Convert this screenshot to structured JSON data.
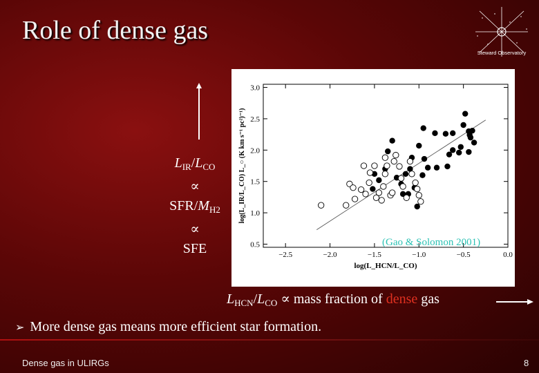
{
  "slide": {
    "title": "Role of dense gas",
    "logo_text": "Steward Observatory",
    "citation": "(Gao & Solomon 2001)",
    "left_block": {
      "line1_a": "L",
      "line1_a_sub": "IR",
      "line1_sep": "/",
      "line1_b": "L",
      "line1_b_sub": "CO",
      "prop1": "∝",
      "line2_a": "SFR/",
      "line2_b": "M",
      "line2_b_sub": "H2",
      "prop2": "∝",
      "line3": "SFE"
    },
    "hcn_line": {
      "a": "L",
      "a_sub": "HCN",
      "sep": "/",
      "b": "L",
      "b_sub": "CO",
      "rest_prefix": " ∝ mass fraction of ",
      "dense_word": "dense",
      "rest_suffix": " gas"
    },
    "bullet": "More dense gas means more efficient star formation.",
    "footer": "Dense gas in ULIRGs",
    "page_number": "8"
  },
  "chart_data": {
    "type": "scatter",
    "xlabel": "log(L_HCN/L_CO)",
    "ylabel": "log(L_IR/L_CO)  L_○ (K km s⁻¹ pc²)⁻¹)",
    "xlim": [
      -2.75,
      0.0
    ],
    "ylim": [
      0.45,
      3.05
    ],
    "x_ticks": [
      -2.5,
      -2.0,
      -1.5,
      -1.0,
      -0.5,
      0.0
    ],
    "y_ticks": [
      0.5,
      1.0,
      1.5,
      2.0,
      2.5,
      3.0
    ],
    "x_tick_labels": [
      "−2.5",
      "−2.0",
      "−1.5",
      "−1.0",
      "−0.5",
      "0.0"
    ],
    "y_tick_labels": [
      "0.5",
      "1.0",
      "1.5",
      "2.0",
      "2.5",
      "3.0"
    ],
    "fit_line": [
      [
        -2.15,
        0.73
      ],
      [
        -0.25,
        2.48
      ]
    ],
    "series": [
      {
        "marker": "filled",
        "points": [
          [
            -0.95,
            2.35
          ],
          [
            -0.82,
            2.27
          ],
          [
            -0.7,
            2.26
          ],
          [
            -0.62,
            2.27
          ],
          [
            -0.5,
            2.4
          ],
          [
            -0.48,
            2.58
          ],
          [
            -0.44,
            2.3
          ],
          [
            -0.43,
            2.24
          ],
          [
            -0.42,
            2.2
          ],
          [
            -0.4,
            2.31
          ],
          [
            -0.38,
            2.12
          ],
          [
            -0.53,
            2.05
          ],
          [
            -0.55,
            1.96
          ],
          [
            -0.62,
            2.0
          ],
          [
            -0.66,
            1.93
          ],
          [
            -0.68,
            1.74
          ],
          [
            -0.8,
            1.72
          ],
          [
            -0.9,
            1.72
          ],
          [
            -0.94,
            1.86
          ],
          [
            -1.0,
            2.07
          ],
          [
            -1.08,
            1.88
          ],
          [
            -1.1,
            1.7
          ],
          [
            -1.15,
            1.62
          ],
          [
            -1.2,
            1.46
          ],
          [
            -1.25,
            1.56
          ],
          [
            -1.3,
            2.15
          ],
          [
            -1.35,
            1.98
          ],
          [
            -1.38,
            1.7
          ],
          [
            -1.45,
            1.52
          ],
          [
            -1.5,
            1.62
          ],
          [
            -1.52,
            1.38
          ],
          [
            -1.18,
            1.3
          ],
          [
            -1.12,
            1.3
          ],
          [
            -1.05,
            1.4
          ],
          [
            -1.02,
            1.1
          ],
          [
            -0.96,
            1.6
          ],
          [
            -0.44,
            1.97
          ]
        ]
      },
      {
        "marker": "open",
        "points": [
          [
            -2.1,
            1.12
          ],
          [
            -1.82,
            1.12
          ],
          [
            -1.78,
            1.46
          ],
          [
            -1.74,
            1.4
          ],
          [
            -1.72,
            1.22
          ],
          [
            -1.65,
            1.37
          ],
          [
            -1.62,
            1.75
          ],
          [
            -1.6,
            1.3
          ],
          [
            -1.56,
            1.48
          ],
          [
            -1.55,
            1.64
          ],
          [
            -1.5,
            1.75
          ],
          [
            -1.48,
            1.24
          ],
          [
            -1.45,
            1.32
          ],
          [
            -1.42,
            1.2
          ],
          [
            -1.4,
            1.42
          ],
          [
            -1.38,
            1.62
          ],
          [
            -1.36,
            1.75
          ],
          [
            -1.32,
            1.28
          ],
          [
            -1.3,
            1.32
          ],
          [
            -1.28,
            1.82
          ],
          [
            -1.26,
            1.92
          ],
          [
            -1.22,
            1.74
          ],
          [
            -1.2,
            1.55
          ],
          [
            -1.18,
            1.42
          ],
          [
            -1.14,
            1.24
          ],
          [
            -1.1,
            1.82
          ],
          [
            -1.08,
            1.62
          ],
          [
            -1.04,
            1.48
          ],
          [
            -1.02,
            1.38
          ],
          [
            -1.0,
            1.28
          ],
          [
            -0.98,
            1.18
          ],
          [
            -1.38,
            1.88
          ]
        ]
      }
    ],
    "colors": {
      "points": "#000000",
      "fit_line": "#555555",
      "axes": "#000000",
      "citation": "#2cc2b4"
    }
  }
}
